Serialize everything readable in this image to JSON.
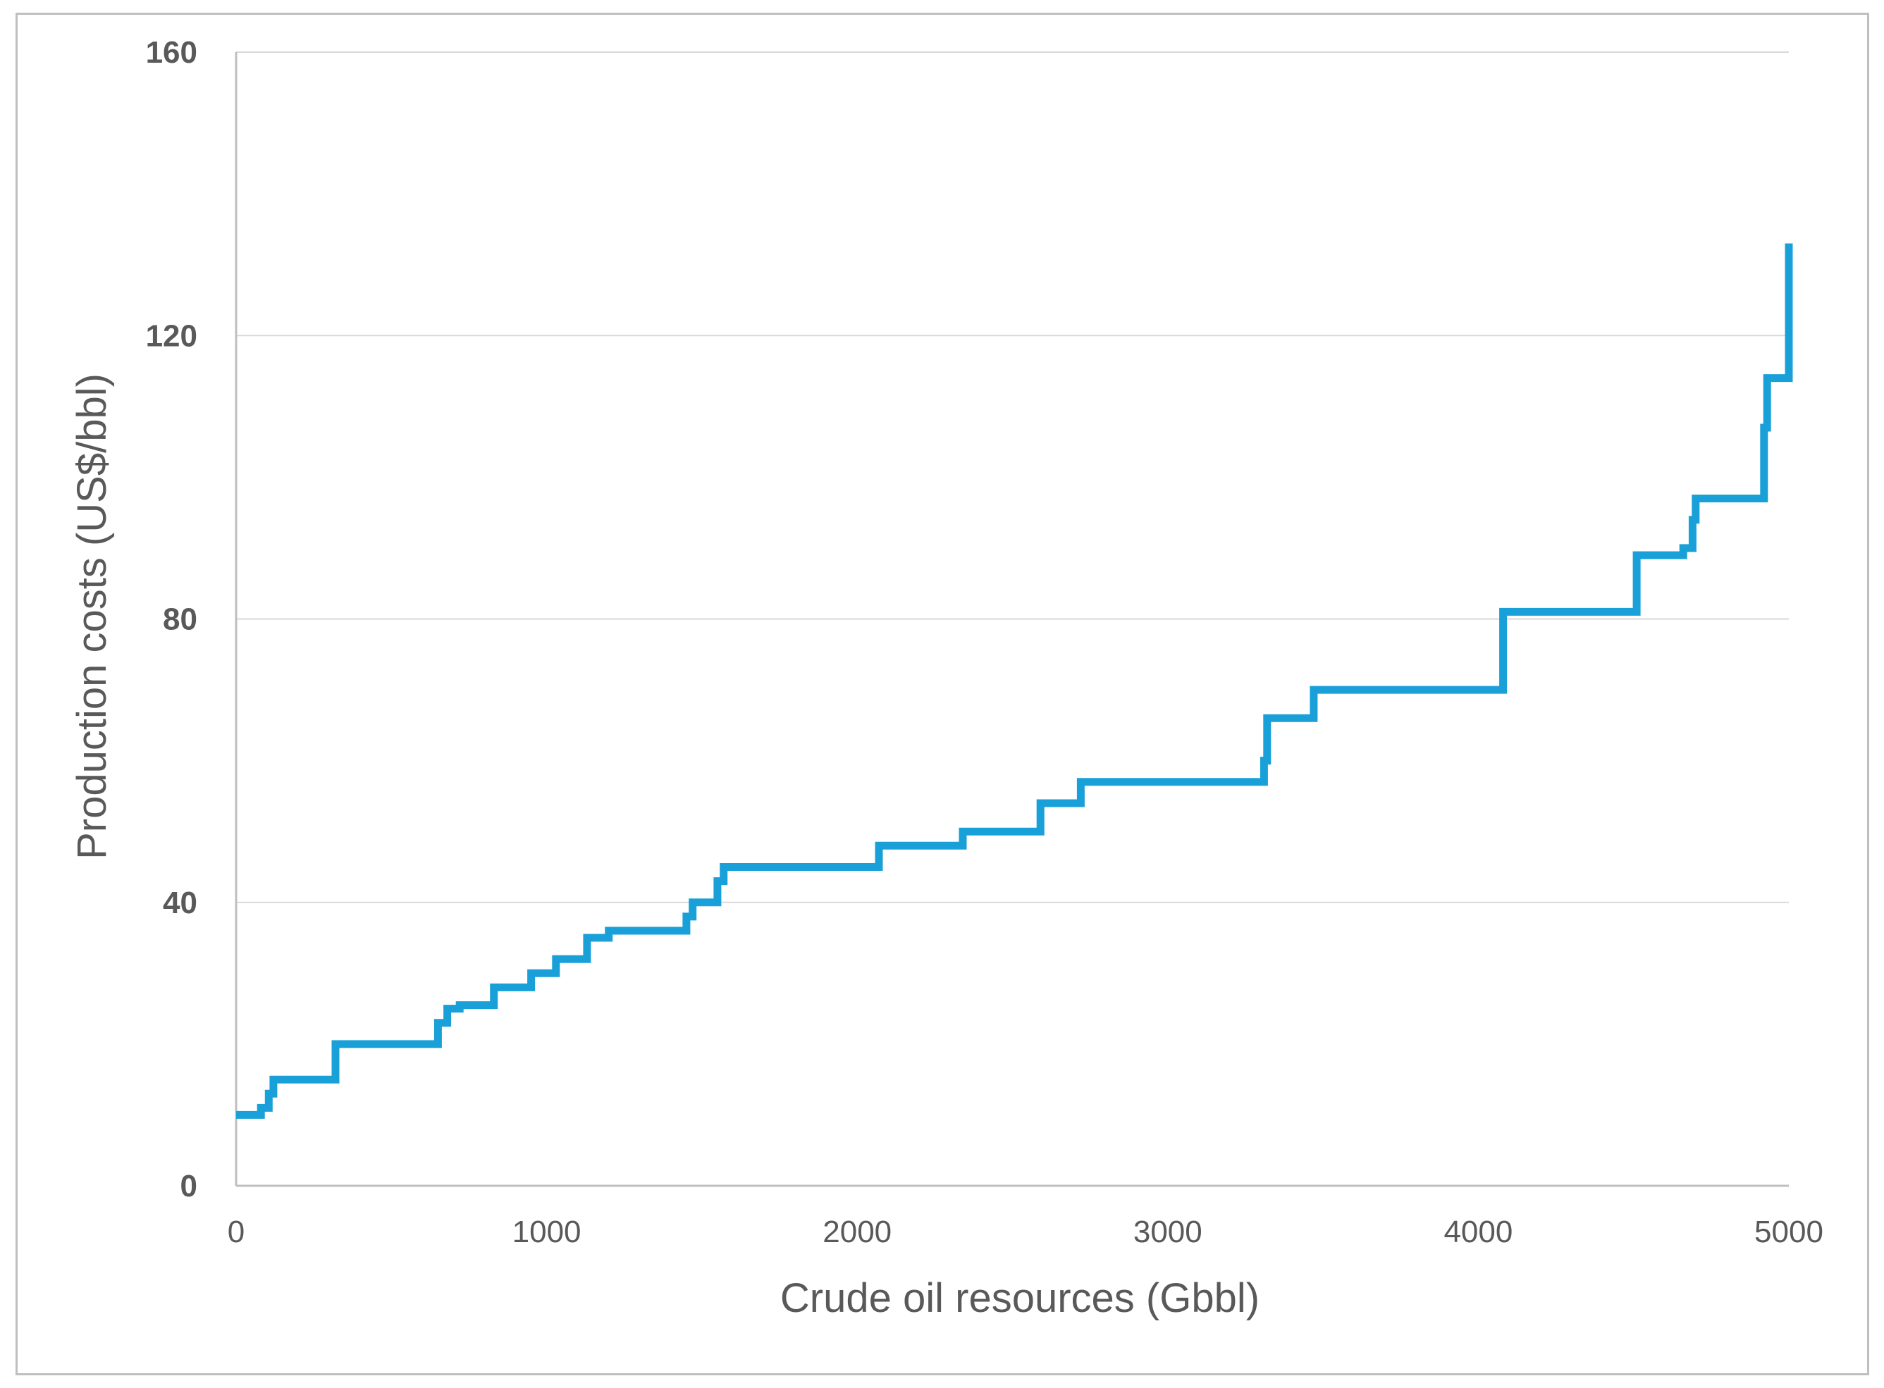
{
  "chart_data": {
    "type": "line",
    "step": true,
    "title": "",
    "xlabel": "Crude oil resources (Gbbl)",
    "ylabel": "Production costs (US$/bbl)",
    "xlim": [
      0,
      5000
    ],
    "ylim": [
      0,
      160
    ],
    "xticks": [
      0,
      1000,
      2000,
      3000,
      4000,
      5000
    ],
    "yticks": [
      0,
      40,
      80,
      120,
      160
    ],
    "grid": "horizontal",
    "legend": "none",
    "line_color": "#1aa0d8",
    "gridline_color": "#d9d9d9",
    "axis_color": "#bfbfbf",
    "series": [
      {
        "x": [
          0,
          80,
          105,
          120,
          320,
          650,
          680,
          720,
          830,
          950,
          1030,
          1130,
          1200,
          1450,
          1470,
          1550,
          1570,
          2070,
          2340,
          2590,
          2720,
          3310,
          3320,
          3470,
          4080,
          4510,
          4660,
          4690,
          4700,
          4920,
          4930,
          5000
        ],
        "y": [
          10,
          11,
          13,
          15,
          20,
          23,
          25,
          25.5,
          28,
          30,
          32,
          35,
          36,
          38,
          40,
          43,
          45,
          48,
          50,
          54,
          57,
          60,
          66,
          70,
          81,
          89,
          90,
          94,
          97,
          107,
          114,
          133
        ]
      }
    ]
  }
}
